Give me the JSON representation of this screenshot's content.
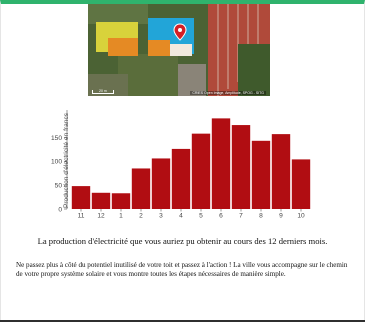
{
  "map": {
    "attribution": "CRIES Open Image, Amplitude, SPOG - SITG",
    "scale_label": "20 m",
    "marker": "location-pin-icon"
  },
  "chart_data": {
    "type": "bar",
    "categories": [
      "11",
      "12",
      "1",
      "2",
      "3",
      "4",
      "5",
      "6",
      "7",
      "8",
      "9",
      "10"
    ],
    "values": [
      48,
      34,
      33,
      85,
      106,
      126,
      158,
      190,
      176,
      143,
      157,
      104
    ],
    "ylabel": "Production d'électricité en francs",
    "yticks": [
      0,
      50,
      100,
      150
    ],
    "ylim": [
      0,
      195
    ],
    "bar_color": "#b10d12"
  },
  "caption": "La production d'électricité que vous auriez pu obtenir au cours des 12 derniers mois.",
  "description": "Ne passez plus à côté du potentiel inutilisé de votre toit et passez à l'action ! La ville vous accompagne sur le chemin de votre propre système solaire et vous montre toutes les étapes nécessaires de manière simple."
}
